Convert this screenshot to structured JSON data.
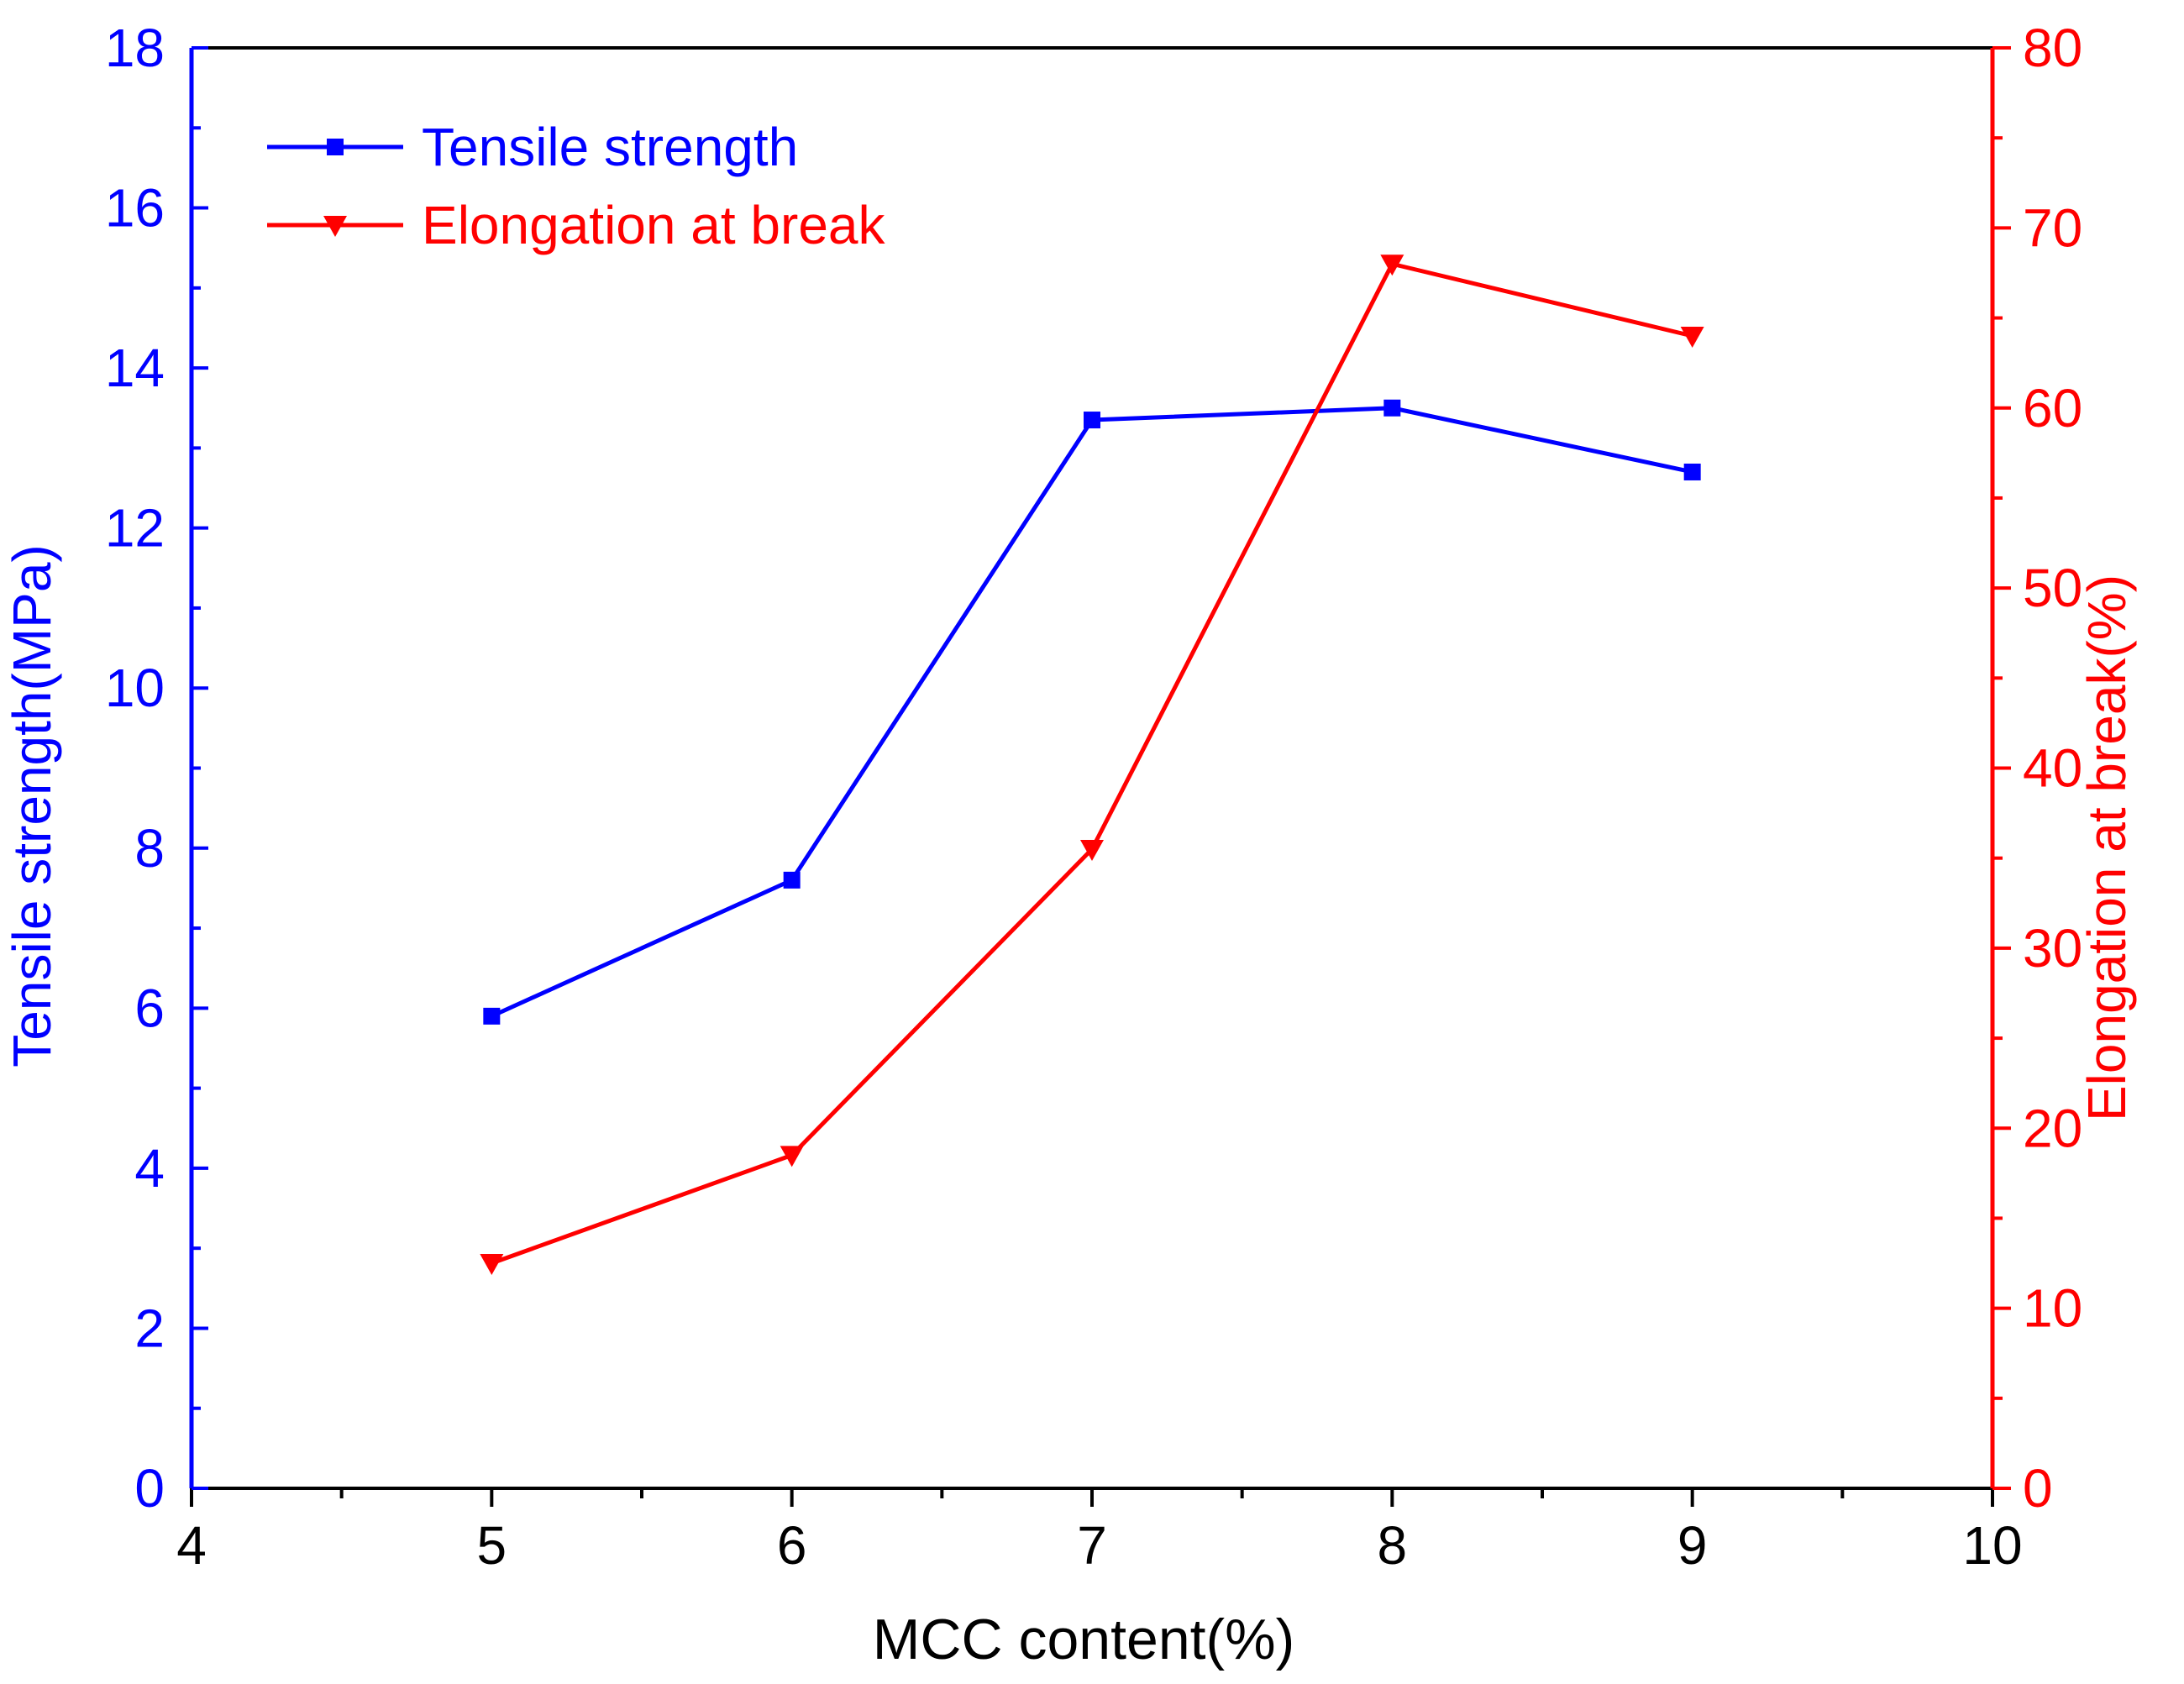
{
  "chart_data": {
    "type": "line",
    "title": "",
    "xlabel": "MCC content(%)",
    "xlim": [
      4,
      10
    ],
    "xticks": [
      "4",
      "5",
      "6",
      "7",
      "8",
      "9",
      "10"
    ],
    "y_left": {
      "label": "Tensile strength(MPa)",
      "lim": [
        0,
        18
      ],
      "ticks": [
        "0",
        "2",
        "4",
        "6",
        "8",
        "10",
        "12",
        "14",
        "16",
        "18"
      ],
      "color": "#0000FF"
    },
    "y_right": {
      "label": "Elongation at break(%)",
      "lim": [
        0,
        80
      ],
      "ticks": [
        "0",
        "10",
        "20",
        "30",
        "40",
        "50",
        "60",
        "70",
        "80"
      ],
      "color": "#FF0000"
    },
    "x": [
      5,
      6,
      7,
      8,
      9
    ],
    "series": [
      {
        "name": "Tensile strength",
        "axis": "left",
        "color": "#0000FF",
        "marker": "square",
        "values": [
          5.9,
          7.6,
          13.35,
          13.5,
          12.7
        ]
      },
      {
        "name": "Elongation at break",
        "axis": "right",
        "color": "#FF0000",
        "marker": "triangle-down",
        "values": [
          12.5,
          18.5,
          35.5,
          68.0,
          64.0
        ]
      }
    ],
    "legend": {
      "position": "top-left"
    },
    "grid": false
  }
}
